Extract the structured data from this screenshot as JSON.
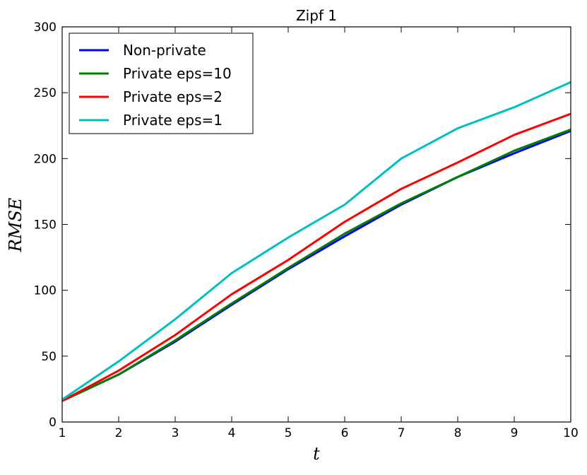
{
  "chart_data": {
    "type": "line",
    "title": "Zipf 1",
    "xlabel": "t",
    "ylabel": "RMSE",
    "x": [
      1,
      2,
      3,
      4,
      5,
      6,
      7,
      8,
      9,
      10
    ],
    "xlim": [
      1,
      10
    ],
    "ylim": [
      0,
      300
    ],
    "xticks": [
      "1",
      "2",
      "3",
      "4",
      "5",
      "6",
      "7",
      "8",
      "9",
      "10"
    ],
    "yticks": [
      "0",
      "50",
      "100",
      "150",
      "200",
      "250",
      "300"
    ],
    "grid": false,
    "legend_position": "top-left",
    "series": [
      {
        "name": "Non-private",
        "color": "#0000ff",
        "values": [
          16,
          36,
          61,
          89,
          116,
          141,
          165,
          186,
          204,
          221
        ]
      },
      {
        "name": "Private eps=10",
        "color": "#008000",
        "values": [
          16,
          36,
          62,
          90,
          117,
          143,
          166,
          186,
          206,
          222
        ]
      },
      {
        "name": "Private eps=2",
        "color": "#ff0000",
        "values": [
          16,
          39,
          66,
          97,
          123,
          152,
          177,
          197,
          218,
          234
        ]
      },
      {
        "name": "Private eps=1",
        "color": "#00bfbf",
        "values": [
          17,
          46,
          78,
          113,
          140,
          165,
          200,
          223,
          239,
          258
        ]
      }
    ]
  }
}
